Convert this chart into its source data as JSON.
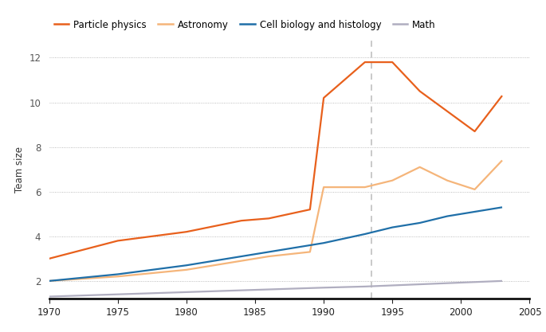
{
  "ylabel": "Team size",
  "xlim": [
    1970,
    2005
  ],
  "ylim": [
    1.2,
    12.8
  ],
  "yticks": [
    2,
    4,
    6,
    8,
    10,
    12
  ],
  "xticks": [
    1970,
    1975,
    1980,
    1985,
    1990,
    1995,
    2000,
    2005
  ],
  "dashed_vline": 1993.5,
  "series": {
    "Particle physics": {
      "color": "#e8601c",
      "x": [
        1970,
        1975,
        1980,
        1984,
        1985,
        1986,
        1989,
        1990,
        1993,
        1995,
        1997,
        2001,
        2003
      ],
      "y": [
        3.0,
        3.8,
        4.2,
        4.7,
        4.75,
        4.8,
        5.2,
        10.2,
        11.8,
        11.8,
        10.5,
        8.7,
        10.3
      ]
    },
    "Astronomy": {
      "color": "#f5b57a",
      "x": [
        1970,
        1975,
        1980,
        1984,
        1985,
        1986,
        1989,
        1990,
        1993,
        1995,
        1997,
        1999,
        2001,
        2003
      ],
      "y": [
        2.0,
        2.2,
        2.5,
        2.9,
        3.0,
        3.1,
        3.3,
        6.2,
        6.2,
        6.5,
        7.1,
        6.5,
        6.1,
        7.4
      ]
    },
    "Cell biology and histology": {
      "color": "#1f6fa8",
      "x": [
        1970,
        1975,
        1980,
        1985,
        1990,
        1993,
        1995,
        1997,
        1999,
        2001,
        2003
      ],
      "y": [
        2.0,
        2.3,
        2.7,
        3.2,
        3.7,
        4.1,
        4.4,
        4.6,
        4.9,
        5.1,
        5.3
      ]
    },
    "Math": {
      "color": "#b0aec0",
      "x": [
        1970,
        1975,
        1980,
        1985,
        1990,
        1993,
        1995,
        1997,
        1999,
        2001,
        2003
      ],
      "y": [
        1.3,
        1.4,
        1.5,
        1.6,
        1.7,
        1.75,
        1.8,
        1.85,
        1.9,
        1.95,
        2.0
      ]
    }
  },
  "legend_order": [
    "Particle physics",
    "Astronomy",
    "Cell biology and histology",
    "Math"
  ]
}
